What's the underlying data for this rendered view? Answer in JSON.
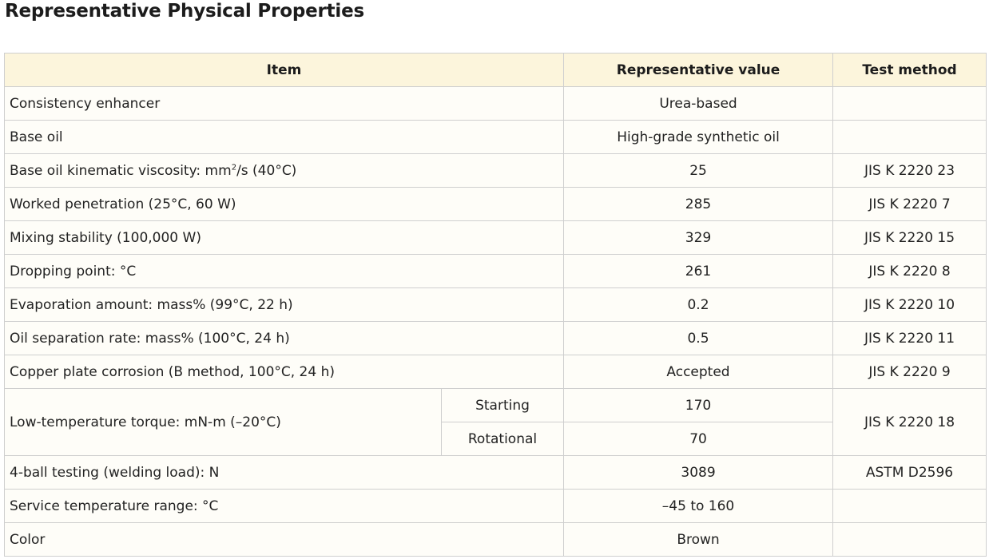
{
  "title": "Representative Physical Properties",
  "headers": {
    "item": "Item",
    "value": "Representative value",
    "method": "Test method"
  },
  "rows": [
    {
      "item": "Consistency enhancer",
      "value": "Urea-based",
      "method": ""
    },
    {
      "item": "Base oil",
      "value": "High-grade synthetic oil",
      "method": ""
    },
    {
      "item_pre": "Base oil kinematic viscosity: mm",
      "item_sup": "2",
      "item_post": "/s (40°C)",
      "value": "25",
      "method": "JIS K 2220 23"
    },
    {
      "item": "Worked penetration (25°C, 60 W)",
      "value": "285",
      "method": "JIS K 2220 7"
    },
    {
      "item": "Mixing stability (100,000 W)",
      "value": "329",
      "method": "JIS K 2220 15"
    },
    {
      "item": "Dropping point: °C",
      "value": "261",
      "method": "JIS K 2220 8"
    },
    {
      "item": "Evaporation amount: mass% (99°C, 22 h)",
      "value": "0.2",
      "method": "JIS K 2220 10"
    },
    {
      "item": "Oil separation rate: mass% (100°C, 24 h)",
      "value": "0.5",
      "method": "JIS K 2220 11"
    },
    {
      "item": "Copper plate corrosion (B method, 100°C, 24 h)",
      "value": "Accepted",
      "method": "JIS K 2220 9"
    },
    {
      "item": "Low-temperature torque: mN-m (–20°C)",
      "sub1": "Starting",
      "value1": "170",
      "sub2": "Rotational",
      "value2": "70",
      "method": "JIS K 2220 18"
    },
    {
      "item": "4-ball testing (welding load): N",
      "value": "3089",
      "method": "ASTM D2596"
    },
    {
      "item": "Service temperature range: °C",
      "value": "–45 to 160",
      "method": ""
    },
    {
      "item": "Color",
      "value": "Brown",
      "method": ""
    }
  ]
}
